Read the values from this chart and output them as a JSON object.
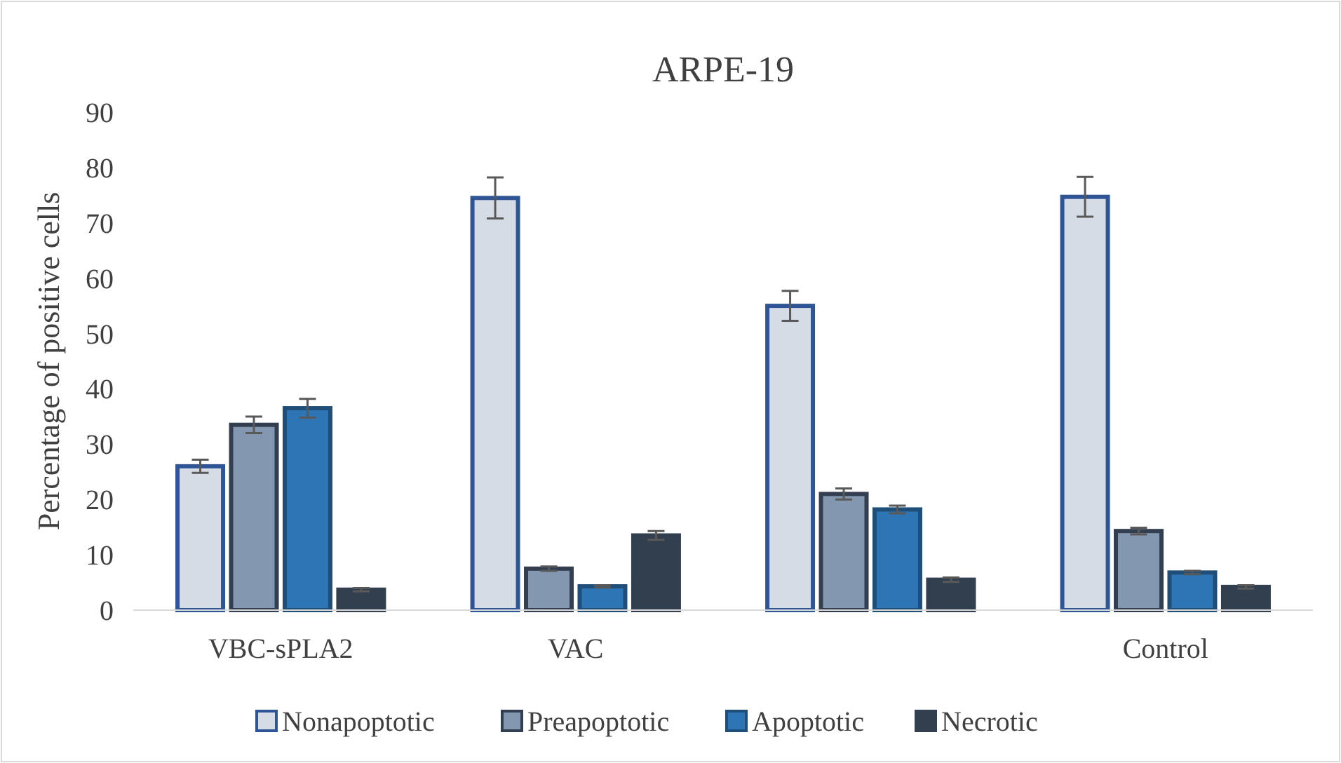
{
  "chart_data": {
    "type": "bar",
    "title": "ARPE-19",
    "ylabel": "Percentage of positive cells",
    "categories": [
      "VBC-sPLA2",
      "VAC",
      null,
      "Control"
    ],
    "series": [
      {
        "name": "Nonapoptotic",
        "color": "#d6dce5",
        "values": [
          26,
          74.5,
          55,
          74.7
        ],
        "errors": [
          1.2,
          3.7,
          2.7,
          3.6
        ]
      },
      {
        "name": "Preapoptotic",
        "color": "#8497b0",
        "values": [
          33.5,
          7.5,
          21,
          14.3
        ],
        "errors": [
          1.5,
          0.4,
          1,
          0.6
        ]
      },
      {
        "name": "Apoptotic",
        "color": "#2e75b6",
        "values": [
          36.5,
          4.3,
          18.2,
          6.8
        ],
        "errors": [
          1.7,
          0.2,
          0.7,
          0.3
        ]
      },
      {
        "name": "Necrotic",
        "color": "#323f4f",
        "values": [
          3.7,
          13.5,
          5.5,
          4.2
        ],
        "errors": [
          0.3,
          0.8,
          0.4,
          0.3
        ]
      }
    ],
    "ylim": [
      0,
      90
    ],
    "yticks": [
      0,
      10,
      20,
      30,
      40,
      50,
      60,
      70,
      80,
      90
    ],
    "grid": false,
    "legend": "bottom"
  }
}
